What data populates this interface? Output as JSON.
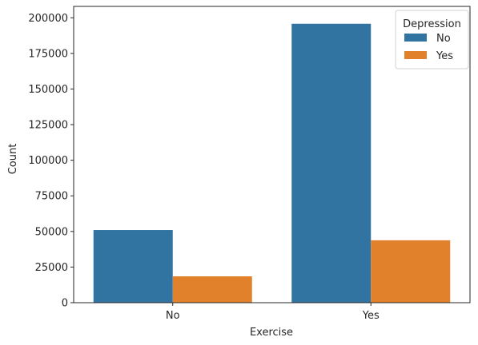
{
  "chart_data": {
    "type": "bar",
    "title": "",
    "xlabel": "Exercise",
    "ylabel": "Count",
    "categories": [
      "No",
      "Yes"
    ],
    "series": [
      {
        "name": "No",
        "color": "#3274a1",
        "values": [
          51000,
          195800
        ]
      },
      {
        "name": "Yes",
        "color": "#e1812c",
        "values": [
          18500,
          43800
        ]
      }
    ],
    "ylim": [
      0,
      208000
    ],
    "yticks": [
      0,
      25000,
      50000,
      75000,
      100000,
      125000,
      150000,
      175000,
      200000
    ],
    "legend": {
      "title": "Depression",
      "position": "top-right"
    },
    "grid": false
  }
}
